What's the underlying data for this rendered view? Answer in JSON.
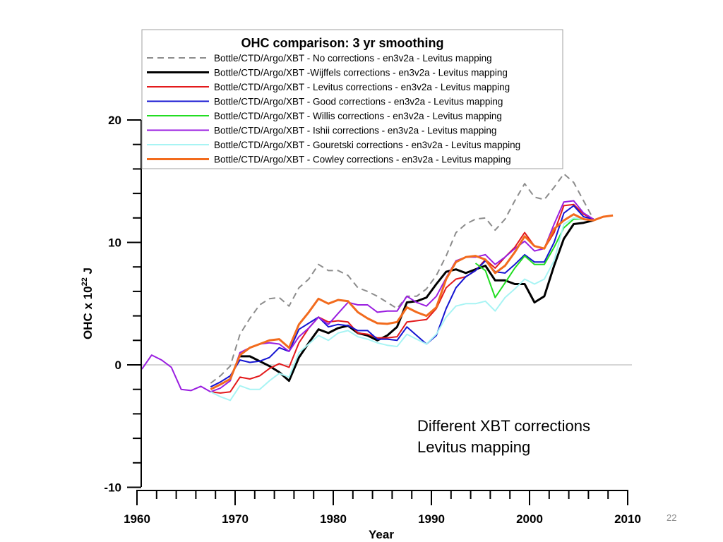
{
  "slide": {
    "page_number": "22"
  },
  "annotation": {
    "lines": [
      "Different XBT corrections",
      "Levitus mapping"
    ]
  },
  "chart_data": {
    "type": "line",
    "title": "OHC comparison: 3 yr smoothing",
    "xlabel": "Year",
    "ylabel": "OHC x 10²² J",
    "ylabel_base": "OHC x 10",
    "ylabel_exp": "22",
    "ylabel_unit": " J",
    "xlim": [
      1960,
      2010
    ],
    "ylim": [
      -10,
      20
    ],
    "xticks": [
      1960,
      1970,
      1980,
      1990,
      2000,
      2010
    ],
    "xtick_labels": [
      "1960",
      "1970",
      "1980",
      "1990",
      "2000",
      "2010"
    ],
    "yticks": [
      -10,
      0,
      10,
      20
    ],
    "ytick_labels": [
      "-10",
      "0",
      "10",
      "20"
    ],
    "x_minor_step": 2,
    "y_minor_step": 2,
    "zero_line": true,
    "legend_position": "top",
    "series": [
      {
        "name": "Bottle/CTD/Argo/XBT - No corrections - en3v2a - Levitus mapping",
        "color": "#8c8c8c",
        "dashed": true,
        "x": [
          1967.5,
          1968.5,
          1969.5,
          1970.5,
          1971.5,
          1972.5,
          1973.5,
          1974.5,
          1975.5,
          1976.5,
          1977.5,
          1978.5,
          1979.5,
          1980.5,
          1981.5,
          1982.5,
          1983.5,
          1984.5,
          1985.5,
          1986.5,
          1987.5,
          1988.5,
          1989.5,
          1990.5,
          1991.5,
          1992.5,
          1993.5,
          1994.5,
          1995.5,
          1996.5,
          1997.5,
          1998.5,
          1999.5,
          2000.5,
          2001.5,
          2002.5,
          2003.5,
          2004.5,
          2005.5,
          2006.5
        ],
        "values": [
          -1.5,
          -0.9,
          -0.1,
          2.5,
          3.8,
          4.9,
          5.4,
          5.5,
          4.8,
          6.3,
          7.0,
          8.2,
          7.7,
          7.7,
          7.3,
          6.3,
          6.0,
          5.6,
          5.1,
          4.6,
          5.6,
          5.6,
          6.2,
          7.3,
          8.9,
          10.8,
          11.5,
          11.9,
          12.0,
          11.0,
          11.9,
          13.4,
          14.8,
          13.7,
          13.5,
          14.5,
          15.6,
          14.9,
          13.4,
          11.9
        ]
      },
      {
        "name": "Bottle/CTD/Argo/XBT -Wijffels corrections - en3v2a - Levitus mapping",
        "color": "#000000",
        "dashed": false,
        "x": [
          1970.5,
          1971.5,
          1972.5,
          1973.5,
          1974.5,
          1975.5,
          1976.5,
          1977.5,
          1978.5,
          1979.5,
          1980.5,
          1981.5,
          1982.5,
          1983.5,
          1984.5,
          1985.5,
          1986.5,
          1987.5,
          1988.5,
          1989.5,
          1990.5,
          1991.5,
          1992.5,
          1993.5,
          1994.5,
          1995.5,
          1996.5,
          1997.5,
          1998.5,
          1999.5,
          2000.5,
          2001.5,
          2002.5,
          2003.5,
          2004.5,
          2005.5,
          2006.5
        ],
        "values": [
          0.7,
          0.7,
          0.3,
          -0.1,
          -0.6,
          -1.3,
          0.6,
          1.8,
          2.9,
          2.6,
          3.0,
          3.2,
          2.6,
          2.4,
          2.0,
          2.4,
          3.1,
          5.1,
          5.2,
          5.5,
          6.6,
          7.6,
          7.8,
          7.5,
          7.8,
          8.1,
          6.9,
          6.9,
          6.6,
          6.6,
          5.1,
          5.6,
          8.1,
          10.3,
          11.5,
          11.6,
          11.8
        ]
      },
      {
        "name": "Bottle/CTD/Argo/XBT - Levitus corrections - en3v2a - Levitus mapping",
        "color": "#e31a1c",
        "dashed": false,
        "x": [
          1967.5,
          1968.5,
          1969.5,
          1970.5,
          1971.5,
          1972.5,
          1973.5,
          1974.5,
          1975.5,
          1976.5,
          1977.5,
          1978.5,
          1979.5,
          1980.5,
          1981.5,
          1982.5,
          1983.5,
          1984.5,
          1985.5,
          1986.5,
          1987.5,
          1988.5,
          1989.5,
          1990.5,
          1991.5,
          1992.5,
          1993.5,
          1994.5,
          1995.5,
          1996.5,
          1997.5,
          1998.5,
          1999.5,
          2000.5,
          2001.5,
          2002.5,
          2003.5,
          2004.5,
          2005.5,
          2006.5
        ],
        "values": [
          -2.2,
          -2.3,
          -2.2,
          -1.0,
          -1.15,
          -0.9,
          -0.3,
          0.1,
          -0.2,
          1.8,
          3.0,
          3.9,
          3.5,
          3.6,
          3.5,
          2.6,
          2.5,
          2.2,
          2.2,
          2.3,
          3.5,
          3.6,
          3.7,
          4.6,
          6.3,
          7.0,
          7.2,
          7.7,
          8.6,
          7.9,
          8.8,
          9.6,
          10.8,
          9.7,
          9.5,
          10.8,
          13.0,
          13.1,
          12.3,
          11.9
        ]
      },
      {
        "name": "Bottle/CTD/Argo/XBT - Good corrections - en3v2a - Levitus mapping",
        "color": "#1414d2",
        "dashed": false,
        "x": [
          1967.5,
          1968.5,
          1969.5,
          1970.5,
          1971.5,
          1972.5,
          1973.5,
          1974.5,
          1975.5,
          1976.5,
          1977.5,
          1978.5,
          1979.5,
          1980.5,
          1981.5,
          1982.5,
          1983.5,
          1984.5,
          1985.5,
          1986.5,
          1987.5,
          1988.5,
          1989.5,
          1990.5,
          1991.5,
          1992.5,
          1993.5,
          1994.5,
          1995.5,
          1996.5,
          1997.5,
          1998.5,
          1999.5,
          2000.5,
          2001.5,
          2002.5,
          2003.5,
          2004.5,
          2005.5,
          2006.5
        ],
        "values": [
          -1.8,
          -1.4,
          -0.9,
          0.4,
          0.2,
          0.3,
          0.6,
          1.4,
          1.1,
          2.9,
          3.4,
          3.9,
          3.1,
          3.3,
          3.2,
          2.8,
          2.8,
          2.1,
          2.1,
          2.0,
          3.1,
          2.4,
          1.7,
          2.4,
          4.6,
          6.3,
          7.2,
          7.7,
          8.5,
          7.6,
          7.5,
          8.2,
          9.0,
          8.4,
          8.4,
          10.0,
          12.4,
          13.0,
          12.1,
          11.9
        ]
      },
      {
        "name": "Bottle/CTD/Argo/XBT - Willis corrections - en3v2a - Levitus mapping",
        "color": "#22dd22",
        "dashed": false,
        "x": [
          1994.5,
          1995.5,
          1996.5,
          1997.5,
          1998.5,
          1999.5,
          2000.5,
          2001.5,
          2002.5,
          2003.5,
          2004.5,
          2005.5,
          2006.5
        ],
        "values": [
          8.3,
          7.7,
          5.5,
          6.7,
          7.9,
          8.9,
          8.2,
          8.2,
          9.6,
          11.2,
          11.9,
          11.9,
          11.8
        ]
      },
      {
        "name": "Bottle/CTD/Argo/XBT - Ishii corrections - en3v2a - Levitus mapping",
        "color": "#9a1ee0",
        "dashed": false,
        "x": [
          1960.5,
          1961.5,
          1962.5,
          1963.5,
          1964.5,
          1965.5,
          1966.5,
          1967.5,
          1968.5,
          1969.5,
          1970.5,
          1971.5,
          1972.5,
          1973.5,
          1974.5,
          1975.5,
          1976.5,
          1977.5,
          1978.5,
          1979.5,
          1980.5,
          1981.5,
          1982.5,
          1983.5,
          1984.5,
          1985.5,
          1986.5,
          1987.5,
          1988.5,
          1989.5,
          1990.5,
          1991.5,
          1992.5,
          1993.5,
          1994.5,
          1995.5,
          1996.5,
          1997.5,
          1998.5,
          1999.5,
          2000.5,
          2001.5,
          2002.5,
          2003.5,
          2004.5,
          2005.5,
          2006.5
        ],
        "values": [
          -0.35,
          0.8,
          0.4,
          -0.2,
          -2.0,
          -2.1,
          -1.75,
          -2.2,
          -1.9,
          -1.3,
          1.0,
          1.4,
          1.7,
          1.8,
          1.7,
          1.1,
          2.3,
          3.0,
          3.9,
          3.3,
          4.2,
          5.1,
          4.9,
          4.9,
          4.3,
          4.4,
          4.4,
          5.6,
          5.1,
          4.8,
          5.6,
          7.1,
          8.5,
          8.8,
          8.8,
          9.0,
          8.2,
          8.8,
          9.5,
          10.1,
          9.3,
          9.5,
          11.5,
          13.3,
          13.4,
          12.4,
          11.9
        ]
      },
      {
        "name": "Bottle/CTD/Argo/XBT - Gouretski corrections - en3v2a - Levitus mapping",
        "color": "#a8f4f4",
        "dashed": false,
        "x": [
          1967.5,
          1968.5,
          1969.5,
          1970.5,
          1971.5,
          1972.5,
          1973.5,
          1974.5,
          1975.5,
          1976.5,
          1977.5,
          1978.5,
          1979.5,
          1980.5,
          1981.5,
          1982.5,
          1983.5,
          1984.5,
          1985.5,
          1986.5,
          1987.5,
          1988.5,
          1989.5,
          1990.5,
          1991.5,
          1992.5,
          1993.5,
          1994.5,
          1995.5,
          1996.5,
          1997.5,
          1998.5,
          1999.5,
          2000.5,
          2001.5,
          2002.5,
          2003.5,
          2004.5,
          2005.5,
          2006.5
        ],
        "values": [
          -2.2,
          -2.6,
          -2.9,
          -1.7,
          -2.0,
          -2.0,
          -1.3,
          -0.7,
          -1.0,
          1.0,
          1.7,
          2.4,
          2.0,
          2.6,
          2.8,
          2.3,
          2.1,
          1.8,
          1.6,
          1.5,
          2.5,
          2.1,
          1.7,
          2.5,
          3.9,
          4.8,
          5.0,
          5.0,
          5.2,
          4.4,
          5.5,
          6.2,
          7.0,
          6.6,
          7.0,
          8.5,
          11.5,
          12.0,
          11.9,
          11.8
        ]
      },
      {
        "name": "Bottle/CTD/Argo/XBT - Cowley corrections - en3v2a - Levitus mapping",
        "color": "#f26b1d",
        "dashed": false,
        "x": [
          1967.5,
          1968.5,
          1969.5,
          1970.5,
          1971.5,
          1972.5,
          1973.5,
          1974.5,
          1975.5,
          1976.5,
          1977.5,
          1978.5,
          1979.5,
          1980.5,
          1981.5,
          1982.5,
          1983.5,
          1984.5,
          1985.5,
          1986.5,
          1987.5,
          1988.5,
          1989.5,
          1990.5,
          1991.5,
          1992.5,
          1993.5,
          1994.5,
          1995.5,
          1996.5,
          1997.5,
          1998.5,
          1999.5,
          2000.5,
          2001.5,
          2002.5,
          2003.5,
          2004.5,
          2005.5,
          2006.5,
          2007.5,
          2008.5
        ],
        "values": [
          -2.0,
          -1.6,
          -1.15,
          0.8,
          1.4,
          1.7,
          2.0,
          2.1,
          1.4,
          3.3,
          4.3,
          5.4,
          5.0,
          5.3,
          5.2,
          4.3,
          3.8,
          3.4,
          3.35,
          3.5,
          4.7,
          4.3,
          4.0,
          4.7,
          7.0,
          8.4,
          8.8,
          8.9,
          8.6,
          7.5,
          8.1,
          9.2,
          10.5,
          9.7,
          9.5,
          11.1,
          11.8,
          12.3,
          11.9,
          11.8,
          12.1,
          12.2
        ]
      }
    ]
  }
}
